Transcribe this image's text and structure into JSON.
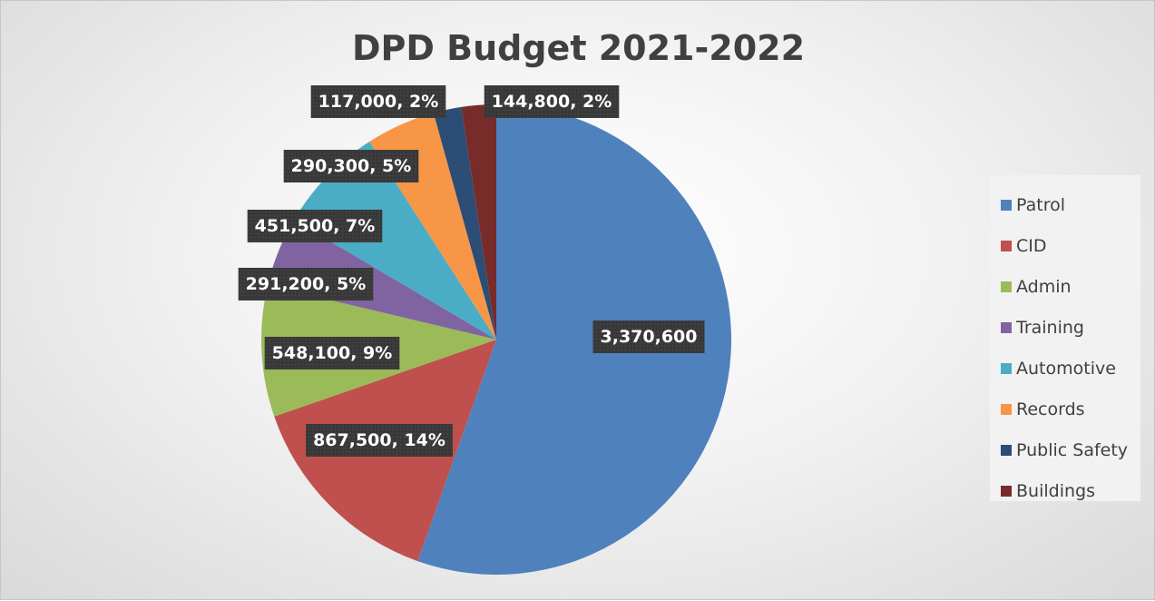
{
  "chart_data": {
    "type": "pie",
    "title": "DPD Budget 2021-2022",
    "legend_position": "right",
    "slices": [
      {
        "name": "Patrol",
        "value": 3370600,
        "label": "3,370,600",
        "color": "#4f81bd"
      },
      {
        "name": "CID",
        "value": 867500,
        "label": "867,500, 14%",
        "color": "#c0504d"
      },
      {
        "name": "Admin",
        "value": 548100,
        "label": "548,100, 9%",
        "color": "#9bbb59"
      },
      {
        "name": "Training",
        "value": 291200,
        "label": "291,200, 5%",
        "color": "#8064a2"
      },
      {
        "name": "Automotive",
        "value": 451500,
        "label": "451,500, 7%",
        "color": "#4bacc6"
      },
      {
        "name": "Records",
        "value": 290300,
        "label": "290,300, 5%",
        "color": "#f79646"
      },
      {
        "name": "Public Safety",
        "value": 117000,
        "label": "117,000, 2%",
        "color": "#2c4d75"
      },
      {
        "name": "Buildings",
        "value": 144800,
        "label": "144,800, 2%",
        "color": "#772c2a"
      }
    ]
  }
}
